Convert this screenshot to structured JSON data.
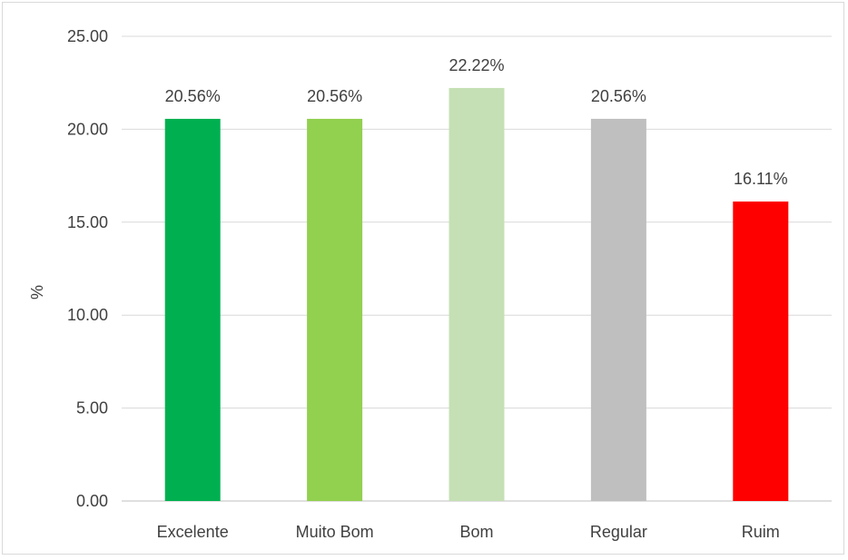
{
  "chart_data": {
    "type": "bar",
    "title": "",
    "xlabel": "",
    "ylabel": "%",
    "ylim": [
      0,
      25
    ],
    "yticks": [
      0,
      5,
      10,
      15,
      20,
      25
    ],
    "ytick_labels": [
      "0.00",
      "5.00",
      "10.00",
      "15.00",
      "20.00",
      "25.00"
    ],
    "grid": true,
    "legend": "none",
    "categories": [
      "Excelente",
      "Muito Bom",
      "Bom",
      "Regular",
      "Ruim"
    ],
    "values": [
      20.56,
      20.56,
      22.22,
      20.56,
      16.11
    ],
    "data_labels": [
      "20.56%",
      "20.56%",
      "22.22%",
      "20.56%",
      "16.11%"
    ],
    "colors": [
      "#00b050",
      "#92d050",
      "#c5e0b4",
      "#bfbfbf",
      "#ff0000"
    ]
  }
}
